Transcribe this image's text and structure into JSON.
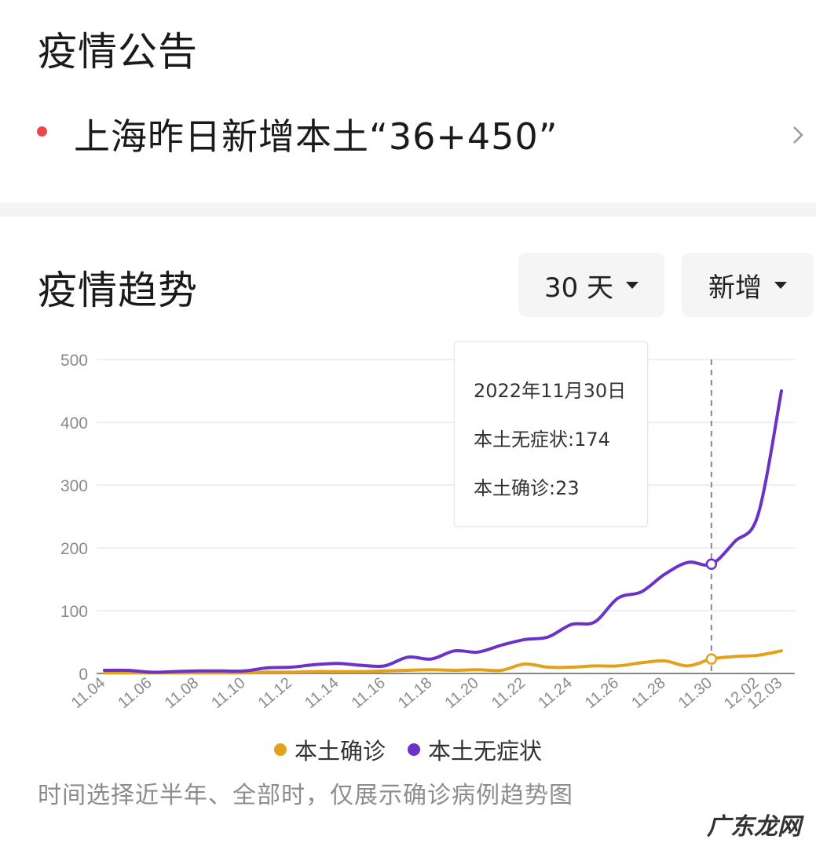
{
  "notice": {
    "title": "疫情公告",
    "headline": "上海昨日新增本土“36+450”"
  },
  "trend": {
    "title": "疫情趋势",
    "range_label": "30 天",
    "metric_label": "新增"
  },
  "tooltip": {
    "date": "2022年11月30日",
    "line1": "本土无症状:174",
    "line2": "本土确诊:23"
  },
  "footnote": "时间选择近半年、全部时，仅展示确诊病例趋势图",
  "watermark": "广东龙网",
  "colors": {
    "confirmed": "#E3A01B",
    "asymptomatic": "#6A32C9",
    "alert_dot": "#E84A4A"
  },
  "chart_data": {
    "type": "line",
    "x": [
      "11.04",
      "11.05",
      "11.06",
      "11.07",
      "11.08",
      "11.09",
      "11.10",
      "11.11",
      "11.12",
      "11.13",
      "11.14",
      "11.15",
      "11.16",
      "11.17",
      "11.18",
      "11.19",
      "11.20",
      "11.21",
      "11.22",
      "11.23",
      "11.24",
      "11.25",
      "11.26",
      "11.27",
      "11.28",
      "11.29",
      "11.30",
      "12.01",
      "12.02",
      "12.03"
    ],
    "x_tick_labels": [
      "11.04",
      "11.06",
      "11.08",
      "11.10",
      "11.12",
      "11.14",
      "11.16",
      "11.18",
      "11.20",
      "11.22",
      "11.24",
      "11.26",
      "11.28",
      "11.30",
      "12.02",
      "12.03"
    ],
    "series": [
      {
        "name": "本土确诊",
        "color": "#E3A01B",
        "values": [
          1,
          1,
          1,
          1,
          1,
          1,
          1,
          2,
          2,
          3,
          3,
          3,
          4,
          5,
          6,
          5,
          6,
          5,
          15,
          10,
          10,
          12,
          12,
          17,
          20,
          12,
          23,
          27,
          29,
          36
        ]
      },
      {
        "name": "本土无症状",
        "color": "#6A32C9",
        "values": [
          5,
          5,
          2,
          3,
          4,
          4,
          4,
          9,
          10,
          14,
          16,
          13,
          12,
          26,
          23,
          36,
          34,
          45,
          54,
          58,
          78,
          82,
          120,
          130,
          158,
          177,
          174,
          210,
          253,
          450
        ]
      }
    ],
    "ylim": [
      0,
      500
    ],
    "yticks": [
      0,
      100,
      200,
      300,
      400,
      500
    ],
    "highlight": {
      "x": "11.30",
      "values": [
        23,
        174
      ]
    },
    "legend": "bottom",
    "grid": true
  }
}
